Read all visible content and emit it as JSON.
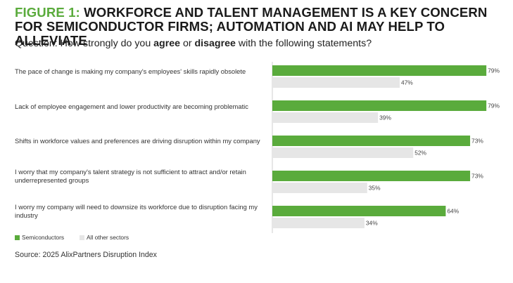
{
  "title_prefix": "FIGURE 1:",
  "title_rest": "WORKFORCE AND TALENT MANAGEMENT IS A KEY CONCERN FOR SEMICONDUCTOR FIRMS; AUTOMATION AND AI MAY HELP TO ALLEVIATE",
  "question": {
    "lead": "Question: How strongly do you ",
    "agree": "agree",
    "mid": " or ",
    "disagree": "disagree",
    "tail": " with the following statements?"
  },
  "colors": {
    "accent": "#5aab3c",
    "other": "#e6e6e6"
  },
  "source": "Source: 2025 AlixPartners Disruption Index",
  "chart_data": {
    "type": "bar",
    "orientation": "horizontal",
    "categories": [
      "The pace of change is making my company's employees' skills rapidly obsolete",
      "Lack of employee engagement and lower productivity are becoming problematic",
      "Shifts in workforce values and preferences are driving disruption within my company",
      "I worry that my company's talent strategy is not sufficient to attract and/or retain underrepresented groups",
      "I worry my company will need to downsize its workforce due to disruption facing my industry"
    ],
    "series": [
      {
        "name": "Semiconductors",
        "values": [
          79,
          79,
          73,
          73,
          64
        ],
        "labels": [
          "79%",
          "79%",
          "73%",
          "73%",
          "64%"
        ]
      },
      {
        "name": "All other sectors",
        "values": [
          47,
          39,
          52,
          35,
          34
        ],
        "labels": [
          "47%",
          "39%",
          "52%",
          "35%",
          "34%"
        ]
      }
    ],
    "xlim": [
      0,
      100
    ],
    "legend": "bottom-left"
  }
}
